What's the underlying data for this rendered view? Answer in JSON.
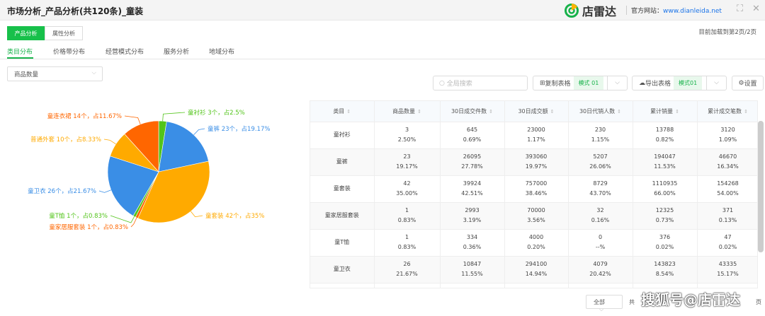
{
  "window": {
    "title": "市场分析_产品分析(共120条)_童装",
    "brand": "店雷达",
    "site_label": "官方网站：",
    "site_url": "www.dianleida.net"
  },
  "top_tabs": [
    {
      "label": "产品分析",
      "active": true
    },
    {
      "label": "属性分析",
      "active": false
    }
  ],
  "loaded_status": "目前加载到第2页/2页",
  "sub_tabs": [
    {
      "label": "类目分布",
      "active": true
    },
    {
      "label": "价格带分布"
    },
    {
      "label": "经营模式分布"
    },
    {
      "label": "服务分析"
    },
    {
      "label": "地域分布"
    }
  ],
  "metric_select": "商品数量",
  "toolbar": {
    "search_placeholder": "全局搜索",
    "copy_label": "复制表格",
    "copy_mode": "模式 01",
    "export_label": "导出表格",
    "export_mode": "模式01",
    "settings_label": "设置"
  },
  "colors": {
    "accent": "#17b24a",
    "green": "#52c41a",
    "blue": "#3a8ee6",
    "yellow": "#ffaa00",
    "orange": "#ff6600"
  },
  "chart_data": {
    "type": "pie",
    "unit": "个",
    "slices": [
      {
        "name": "童衬衫",
        "value": 3,
        "percent": 2.5,
        "label": "童衬衫 3个，占2.5%",
        "color": "#52c41a"
      },
      {
        "name": "童裤",
        "value": 23,
        "percent": 19.17,
        "label": "童裤 23个，占19.17%",
        "color": "#3a8ee6"
      },
      {
        "name": "童套装",
        "value": 42,
        "percent": 35,
        "label": "童套装 42个，占35%",
        "color": "#ffaa00"
      },
      {
        "name": "童家居服套装",
        "value": 1,
        "percent": 0.83,
        "label": "童家居服套装 1个，占0.83%",
        "color": "#ff6600"
      },
      {
        "name": "童T恤",
        "value": 1,
        "percent": 0.83,
        "label": "童T恤 1个，占0.83%",
        "color": "#52c41a"
      },
      {
        "name": "童卫衣",
        "value": 26,
        "percent": 21.67,
        "label": "童卫衣 26个，占21.67%",
        "color": "#3a8ee6"
      },
      {
        "name": "普通外套",
        "value": 10,
        "percent": 8.33,
        "label": "普通外套 10个，占8.33%",
        "color": "#ffaa00"
      },
      {
        "name": "童连衣裙",
        "value": 14,
        "percent": 11.67,
        "label": "童连衣裙 14个，占11.67%",
        "color": "#ff6600"
      }
    ]
  },
  "table": {
    "columns": [
      "类目",
      "商品数量",
      "30日成交件数",
      "30日成交额",
      "30日代销人数",
      "累计销量",
      "累计成交笔数"
    ],
    "rows": [
      [
        "童衬衫",
        [
          "3",
          "2.50%"
        ],
        [
          "645",
          "0.69%"
        ],
        [
          "23000",
          "1.17%"
        ],
        [
          "230",
          "1.15%"
        ],
        [
          "13788",
          "0.82%"
        ],
        [
          "3120",
          "1.09%"
        ]
      ],
      [
        "童裤",
        [
          "23",
          "19.17%"
        ],
        [
          "26095",
          "27.78%"
        ],
        [
          "393060",
          "19.97%"
        ],
        [
          "5207",
          "26.06%"
        ],
        [
          "194047",
          "11.53%"
        ],
        [
          "46670",
          "16.34%"
        ]
      ],
      [
        "童套装",
        [
          "42",
          "35.00%"
        ],
        [
          "39924",
          "42.51%"
        ],
        [
          "757000",
          "38.46%"
        ],
        [
          "8729",
          "43.70%"
        ],
        [
          "1110935",
          "66.00%"
        ],
        [
          "154268",
          "54.00%"
        ]
      ],
      [
        "童家居服套装",
        [
          "1",
          "0.83%"
        ],
        [
          "2993",
          "3.19%"
        ],
        [
          "70000",
          "3.56%"
        ],
        [
          "32",
          "0.16%"
        ],
        [
          "12325",
          "0.73%"
        ],
        [
          "371",
          "0.13%"
        ]
      ],
      [
        "童T恤",
        [
          "1",
          "0.83%"
        ],
        [
          "334",
          "0.36%"
        ],
        [
          "4000",
          "0.20%"
        ],
        [
          "0",
          "--%"
        ],
        [
          "376",
          "0.02%"
        ],
        [
          "47",
          "0.02%"
        ]
      ],
      [
        "童卫衣",
        [
          "26",
          "21.67%"
        ],
        [
          "10847",
          "11.55%"
        ],
        [
          "294100",
          "14.94%"
        ],
        [
          "4079",
          "20.42%"
        ],
        [
          "143823",
          "8.54%"
        ],
        [
          "43335",
          "15.17%"
        ]
      ]
    ]
  },
  "pager": {
    "size_select": "全部",
    "total_prefix": "共",
    "page_suffix": "页"
  },
  "watermark": "搜狐号@店雷达"
}
